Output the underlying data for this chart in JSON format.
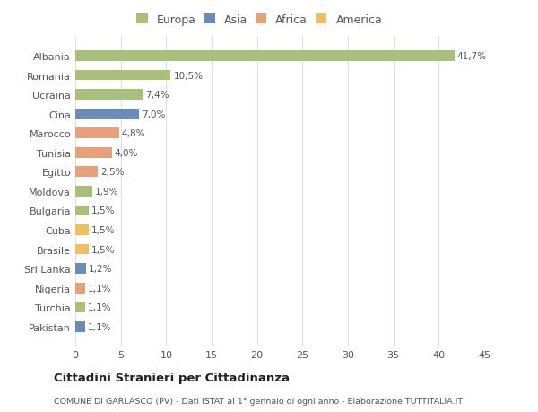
{
  "categories": [
    "Pakistan",
    "Turchia",
    "Nigeria",
    "Sri Lanka",
    "Brasile",
    "Cuba",
    "Bulgaria",
    "Moldova",
    "Egitto",
    "Tunisia",
    "Marocco",
    "Cina",
    "Ucraina",
    "Romania",
    "Albania"
  ],
  "values": [
    1.1,
    1.1,
    1.1,
    1.2,
    1.5,
    1.5,
    1.5,
    1.9,
    2.5,
    4.0,
    4.8,
    7.0,
    7.4,
    10.5,
    41.7
  ],
  "labels": [
    "1,1%",
    "1,1%",
    "1,1%",
    "1,2%",
    "1,5%",
    "1,5%",
    "1,5%",
    "1,9%",
    "2,5%",
    "4,0%",
    "4,8%",
    "7,0%",
    "7,4%",
    "10,5%",
    "41,7%"
  ],
  "colors": [
    "#6b8cba",
    "#a8c07a",
    "#e8a07a",
    "#6b8cba",
    "#f0c060",
    "#f0c060",
    "#a8c07a",
    "#a8c07a",
    "#e8a07a",
    "#e8a07a",
    "#e8a07a",
    "#6b8cba",
    "#a8c07a",
    "#a8c07a",
    "#a8c07a"
  ],
  "legend_labels": [
    "Europa",
    "Asia",
    "Africa",
    "America"
  ],
  "legend_colors": [
    "#a8c07a",
    "#6b8cba",
    "#e8a07a",
    "#f0c060"
  ],
  "title": "Cittadini Stranieri per Cittadinanza",
  "subtitle": "COMUNE DI GARLASCO (PV) - Dati ISTAT al 1° gennaio di ogni anno - Elaborazione TUTTITALIA.IT",
  "xlim": [
    0,
    45
  ],
  "xticks": [
    0,
    5,
    10,
    15,
    20,
    25,
    30,
    35,
    40,
    45
  ],
  "bg_color": "#ffffff",
  "plot_bg_color": "#ffffff",
  "grid_color": "#e0e0e0"
}
